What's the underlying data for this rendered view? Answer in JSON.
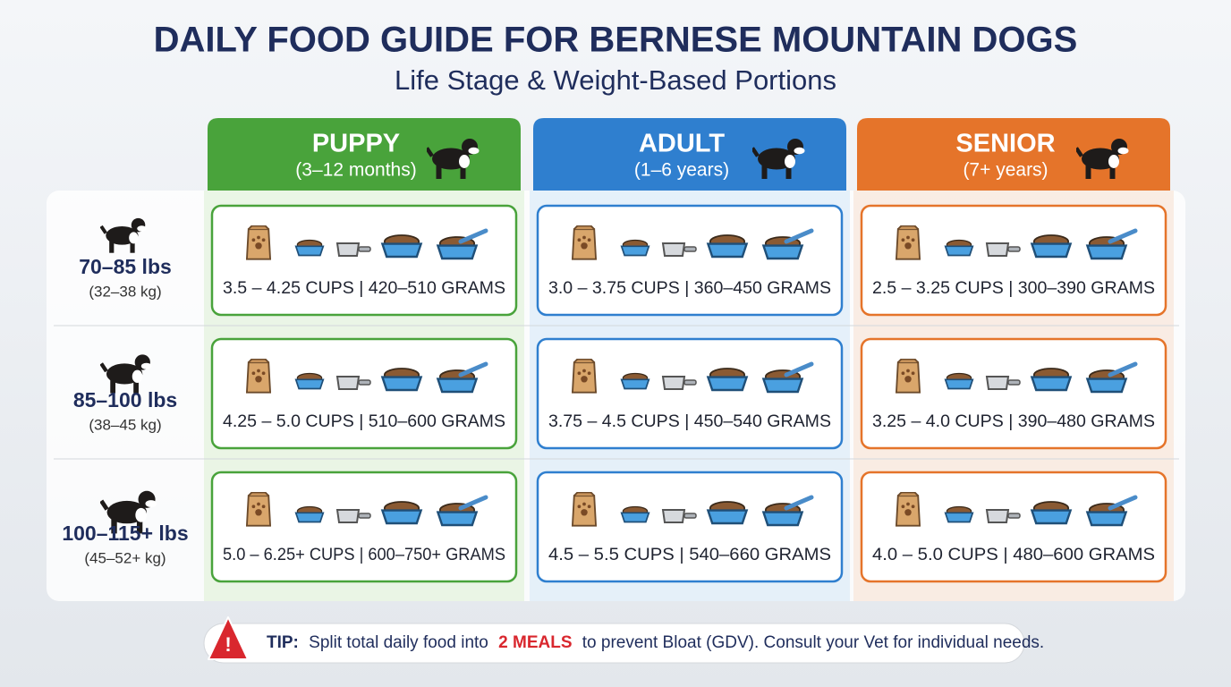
{
  "header": {
    "title": "DAILY FOOD GUIDE FOR BERNESE MOUNTAIN DOGS",
    "subtitle": "Life Stage & Weight-Based Portions"
  },
  "columns": [
    {
      "name": "PUPPY",
      "range": "(3–12 months)",
      "color": "#49a33b",
      "tint": "#e3f2dc"
    },
    {
      "name": "ADULT",
      "range": "(1–6 years)",
      "color": "#2f7fcf",
      "tint": "#dcebf8"
    },
    {
      "name": "SENIOR",
      "range": "(7+ years)",
      "color": "#e5742a",
      "tint": "#f8e6d8"
    }
  ],
  "rows": [
    {
      "weight": "70–85 lbs",
      "metric": "(32–38 kg)",
      "cells": [
        "3.5 – 4.25 CUPS | 420–510 GRAMS",
        "3.0 – 3.75 CUPS | 360–450 GRAMS",
        "2.5 – 3.25 CUPS | 300–390 GRAMS"
      ]
    },
    {
      "weight": "85–100 lbs",
      "metric": "(38–45 kg)",
      "cells": [
        "4.25 – 5.0 CUPS | 510–600 GRAMS",
        "3.75 – 4.5 CUPS | 450–540 GRAMS",
        "3.25 – 4.0 CUPS | 390–480 GRAMS"
      ]
    },
    {
      "weight": "100–115+ lbs",
      "metric": "(45–52+ kg)",
      "cells": [
        "5.0 – 6.25+ CUPS | 600–750+ GRAMS",
        "4.5 – 5.5 CUPS | 540–660 GRAMS",
        "4.0 – 5.0 CUPS | 480–600 GRAMS"
      ]
    }
  ],
  "tip": {
    "label": "TIP:",
    "before": "Split total daily food into",
    "highlight": "2 MEALS",
    "after": "to prevent Bloat (GDV). Consult your Vet for individual needs."
  }
}
